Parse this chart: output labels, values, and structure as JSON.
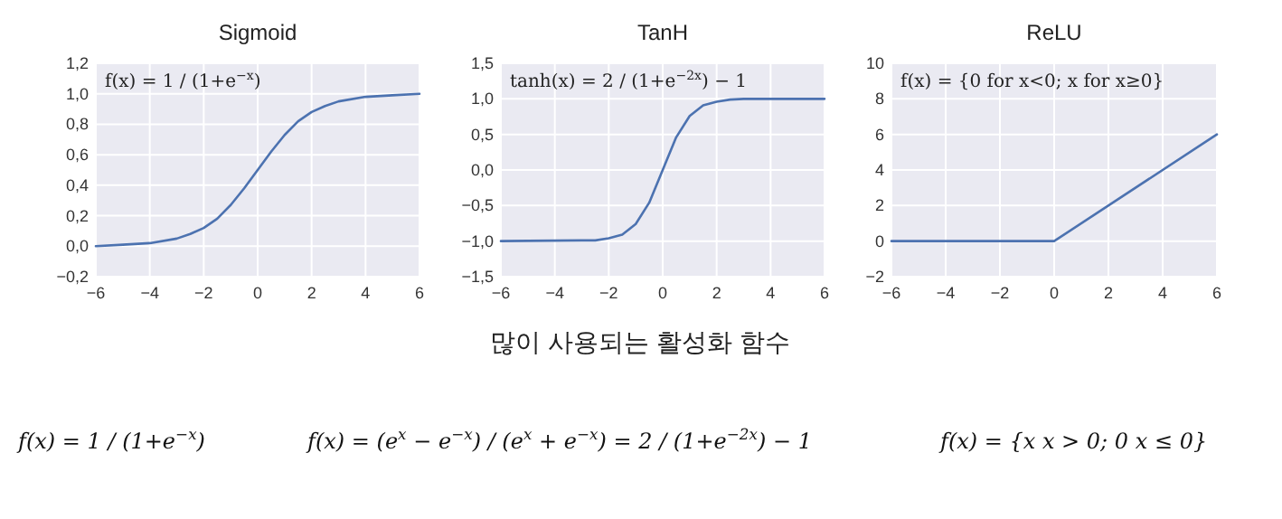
{
  "chart_data": [
    {
      "type": "line",
      "title": "Sigmoid",
      "color": "#4c72b0",
      "grid": true,
      "x": [
        -6,
        -5,
        -4,
        -3,
        -2.5,
        -2,
        -1.5,
        -1,
        -0.5,
        0,
        0.5,
        1,
        1.5,
        2,
        2.5,
        3,
        4,
        5,
        6
      ],
      "values": [
        0,
        0.01,
        0.02,
        0.05,
        0.08,
        0.12,
        0.18,
        0.27,
        0.38,
        0.5,
        0.62,
        0.73,
        0.82,
        0.88,
        0.92,
        0.95,
        0.98,
        0.99,
        1
      ],
      "xlim": [
        -6,
        6
      ],
      "ylim": [
        -0.2,
        1.2
      ],
      "xticks": [
        {
          "value": -6,
          "label": "−6"
        },
        {
          "value": -4,
          "label": "−4"
        },
        {
          "value": -2,
          "label": "−2"
        },
        0,
        2,
        4,
        6
      ],
      "yticks": [
        {
          "value": -0.2,
          "label": "−0,2"
        },
        {
          "value": 0,
          "label": "0,0"
        },
        {
          "value": 0.2,
          "label": "0,2"
        },
        {
          "value": 0.4,
          "label": "0,4"
        },
        {
          "value": 0.6,
          "label": "0,6"
        },
        {
          "value": 0.8,
          "label": "0,8"
        },
        {
          "value": 1,
          "label": "1,0"
        },
        {
          "value": 1.2,
          "label": "1,2"
        }
      ],
      "annotations": [
        "f(x) = 1 / (1+e$^{−x}$)"
      ]
    },
    {
      "type": "line",
      "title": "TanH",
      "color": "#4c72b0",
      "grid": true,
      "x": [
        -6,
        -3,
        -2.5,
        -2,
        -1.5,
        -1,
        -0.5,
        0,
        0.5,
        1,
        1.5,
        2,
        2.5,
        3,
        6
      ],
      "values": [
        -1,
        -0.99,
        -0.99,
        -0.96,
        -0.91,
        -0.76,
        -0.46,
        0,
        0.46,
        0.76,
        0.91,
        0.96,
        0.99,
        1,
        1
      ],
      "xlim": [
        -6,
        6
      ],
      "ylim": [
        -1.5,
        1.5
      ],
      "xticks": [
        {
          "value": -6,
          "label": "−6"
        },
        {
          "value": -4,
          "label": "−4"
        },
        {
          "value": -2,
          "label": "−2"
        },
        0,
        2,
        4,
        6
      ],
      "yticks": [
        {
          "value": -1.5,
          "label": "−1,5"
        },
        {
          "value": -1,
          "label": "−1,0"
        },
        {
          "value": -0.5,
          "label": "−0,5"
        },
        {
          "value": 0,
          "label": "0,0"
        },
        {
          "value": 0.5,
          "label": "0,5"
        },
        {
          "value": 1,
          "label": "1,0"
        },
        {
          "value": 1.5,
          "label": "1,5"
        }
      ],
      "annotations": [
        "tanh(x) = 2 / (1+e$^{−2x}$) − 1"
      ]
    },
    {
      "type": "line",
      "title": "ReLU",
      "color": "#4c72b0",
      "grid": true,
      "x": [
        -6,
        0,
        6
      ],
      "values": [
        0,
        0,
        6
      ],
      "xlim": [
        -6,
        6
      ],
      "ylim": [
        -2,
        10
      ],
      "xticks": [
        {
          "value": -6,
          "label": "−6"
        },
        {
          "value": -4,
          "label": "−4"
        },
        {
          "value": -2,
          "label": "−2"
        },
        0,
        2,
        4,
        6
      ],
      "yticks": [
        {
          "value": -2,
          "label": "−2"
        },
        0,
        2,
        4,
        6,
        8,
        10
      ],
      "annotations": [
        "f(x) = {0 for x<0; x for x≥0}"
      ]
    },
    {
      "type": "other",
      "title": "많이 사용되는 활성화 함수",
      "annotations": [
        "f(x) = 1 / (1+e$^{−x}$)",
        "f(x) = (e$^{x}$ − e$^{−x}$) / (e$^{x}$ + e$^{−x}$) = 2 / (1+e$^{−2x}$) − 1",
        "f(x) = {x  x > 0; 0  x ≤ 0}"
      ]
    }
  ]
}
